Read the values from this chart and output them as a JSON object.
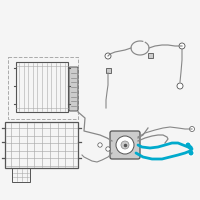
{
  "bg_color": "#f5f5f5",
  "line_color": "#aaaaaa",
  "highlight_color": "#00aacc",
  "dark_color": "#555555",
  "light_gray": "#cccccc",
  "mid_gray": "#888888",
  "border_color": "#999999"
}
